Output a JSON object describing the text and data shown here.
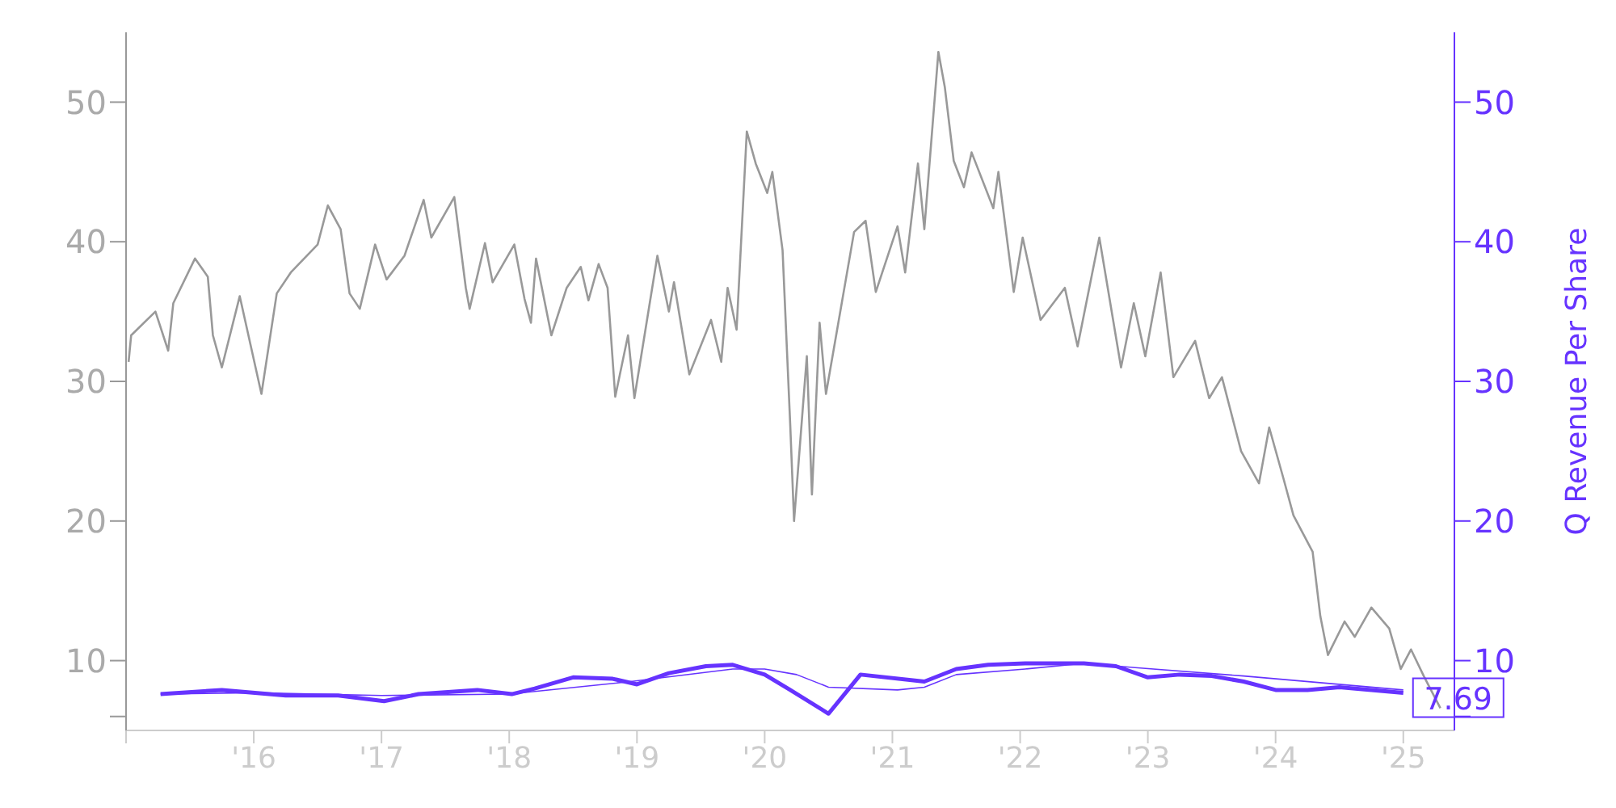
{
  "chart_data": {
    "type": "line",
    "y2label": "Q Revenue Per Share",
    "xlim": [
      2015,
      2025.4
    ],
    "xticks": [
      {
        "value": 2015,
        "label": null
      },
      {
        "value": 2016,
        "label": "'16"
      },
      {
        "value": 2017,
        "label": "'17"
      },
      {
        "value": 2018,
        "label": "'18"
      },
      {
        "value": 2019,
        "label": "'19"
      },
      {
        "value": 2020,
        "label": "'20"
      },
      {
        "value": 2021,
        "label": "'21"
      },
      {
        "value": 2022,
        "label": "'22"
      },
      {
        "value": 2023,
        "label": "'23"
      },
      {
        "value": 2024,
        "label": "'24"
      },
      {
        "value": 2025,
        "label": "'25"
      }
    ],
    "ylim": [
      5,
      55
    ],
    "yticks": [
      {
        "value": 6,
        "label": null
      },
      10,
      20,
      30,
      40,
      50
    ],
    "y2lim": [
      5,
      55
    ],
    "y2ticks": [
      {
        "value": 6,
        "label": null
      },
      10,
      20,
      30,
      40,
      50
    ],
    "grid": false,
    "legend": false,
    "marker": "none",
    "series": [
      {
        "color": "#999999",
        "x": [
          2015.02,
          2015.04,
          2015.23,
          2015.33,
          2015.37,
          2015.54,
          2015.64,
          2015.68,
          2015.75,
          2015.89,
          2016.06,
          2016.18,
          2016.29,
          2016.5,
          2016.58,
          2016.68,
          2016.75,
          2016.83,
          2016.95,
          2017.04,
          2017.18,
          2017.33,
          2017.39,
          2017.57,
          2017.66,
          2017.69,
          2017.81,
          2017.87,
          2018.04,
          2018.12,
          2018.17,
          2018.21,
          2018.33,
          2018.45,
          2018.56,
          2018.62,
          2018.7,
          2018.77,
          2018.83,
          2018.93,
          2018.98,
          2019.16,
          2019.25,
          2019.29,
          2019.41,
          2019.58,
          2019.66,
          2019.71,
          2019.78,
          2019.86,
          2019.93,
          2020.02,
          2020.06,
          2020.14,
          2020.2,
          2020.23,
          2020.33,
          2020.37,
          2020.43,
          2020.48,
          2020.7,
          2020.79,
          2020.87,
          2021.04,
          2021.1,
          2021.2,
          2021.25,
          2021.36,
          2021.41,
          2021.48,
          2021.56,
          2021.62,
          2021.79,
          2021.83,
          2021.95,
          2022.02,
          2022.16,
          2022.35,
          2022.45,
          2022.62,
          2022.79,
          2022.89,
          2022.98,
          2023.1,
          2023.2,
          2023.37,
          2023.48,
          2023.58,
          2023.73,
          2023.87,
          2023.95,
          2024.06,
          2024.14,
          2024.29,
          2024.35,
          2024.41,
          2024.54,
          2024.62,
          2024.75,
          2024.89,
          2024.98,
          2025.06,
          2025.16,
          2025.29
        ],
        "values": [
          31.4,
          33.3,
          35.0,
          32.2,
          35.6,
          38.8,
          37.5,
          33.3,
          31.0,
          36.1,
          29.1,
          36.3,
          37.8,
          39.8,
          42.6,
          40.9,
          36.3,
          35.2,
          39.8,
          37.3,
          39.0,
          43.0,
          40.3,
          43.2,
          36.7,
          35.2,
          39.9,
          37.1,
          39.8,
          35.9,
          34.2,
          38.8,
          33.3,
          36.7,
          38.2,
          35.8,
          38.4,
          36.7,
          28.9,
          33.3,
          28.8,
          39.0,
          35.0,
          37.1,
          30.5,
          34.4,
          31.4,
          36.7,
          33.7,
          47.9,
          45.6,
          43.5,
          45.0,
          39.4,
          26.9,
          20.0,
          31.8,
          21.9,
          34.2,
          29.1,
          40.7,
          41.5,
          36.4,
          41.1,
          37.8,
          45.6,
          40.9,
          53.6,
          51.1,
          45.8,
          43.9,
          46.4,
          42.4,
          45.0,
          36.4,
          40.3,
          34.4,
          36.7,
          32.5,
          40.3,
          31.0,
          35.6,
          31.8,
          37.8,
          30.3,
          32.9,
          28.8,
          30.3,
          25.0,
          22.7,
          26.7,
          23.1,
          20.4,
          17.8,
          13.2,
          10.4,
          12.8,
          11.7,
          13.8,
          12.3,
          9.4,
          10.8,
          8.9,
          6.6
        ]
      },
      {
        "color": "#6633ff",
        "axis": "y2",
        "x": [
          2015.27,
          2015.75,
          2016.25,
          2016.66,
          2017.02,
          2017.29,
          2017.75,
          2018.02,
          2018.2,
          2018.5,
          2018.81,
          2019.0,
          2019.25,
          2019.54,
          2019.75,
          2020.0,
          2020.2,
          2020.5,
          2020.75,
          2021.25,
          2021.5,
          2021.75,
          2022.04,
          2022.5,
          2022.75,
          2023.0,
          2023.25,
          2023.5,
          2023.75,
          2024.0,
          2024.25,
          2024.5,
          2024.75,
          2025.0
        ],
        "values": [
          7.6,
          7.9,
          7.5,
          7.5,
          7.1,
          7.6,
          7.9,
          7.6,
          8.0,
          8.8,
          8.7,
          8.3,
          9.1,
          9.6,
          9.7,
          9.0,
          7.9,
          6.2,
          9.0,
          8.5,
          9.4,
          9.7,
          9.8,
          9.8,
          9.6,
          8.8,
          9.0,
          8.9,
          8.5,
          7.9,
          7.9,
          8.1,
          7.9,
          7.69
        ],
        "value_labels": [
          null,
          null,
          null,
          null,
          null,
          null,
          null,
          null,
          null,
          null,
          null,
          null,
          null,
          null,
          null,
          null,
          null,
          null,
          null,
          null,
          null,
          null,
          null,
          null,
          null,
          null,
          null,
          null,
          null,
          null,
          null,
          null,
          null,
          "7.69"
        ]
      },
      {
        "color": "#6633ff",
        "axis": "y2",
        "x": [
          2015.27,
          2016.0,
          2017.0,
          2018.0,
          2018.95,
          2019.75,
          2020.0,
          2020.25,
          2020.5,
          2021.04,
          2021.25,
          2021.5,
          2022.04,
          2022.5,
          2022.9,
          2023.75,
          2025.0
        ],
        "values": [
          7.6,
          7.7,
          7.5,
          7.6,
          8.5,
          9.4,
          9.4,
          9.0,
          8.1,
          7.9,
          8.1,
          9.0,
          9.4,
          9.8,
          9.5,
          8.9,
          7.9
        ]
      }
    ]
  }
}
